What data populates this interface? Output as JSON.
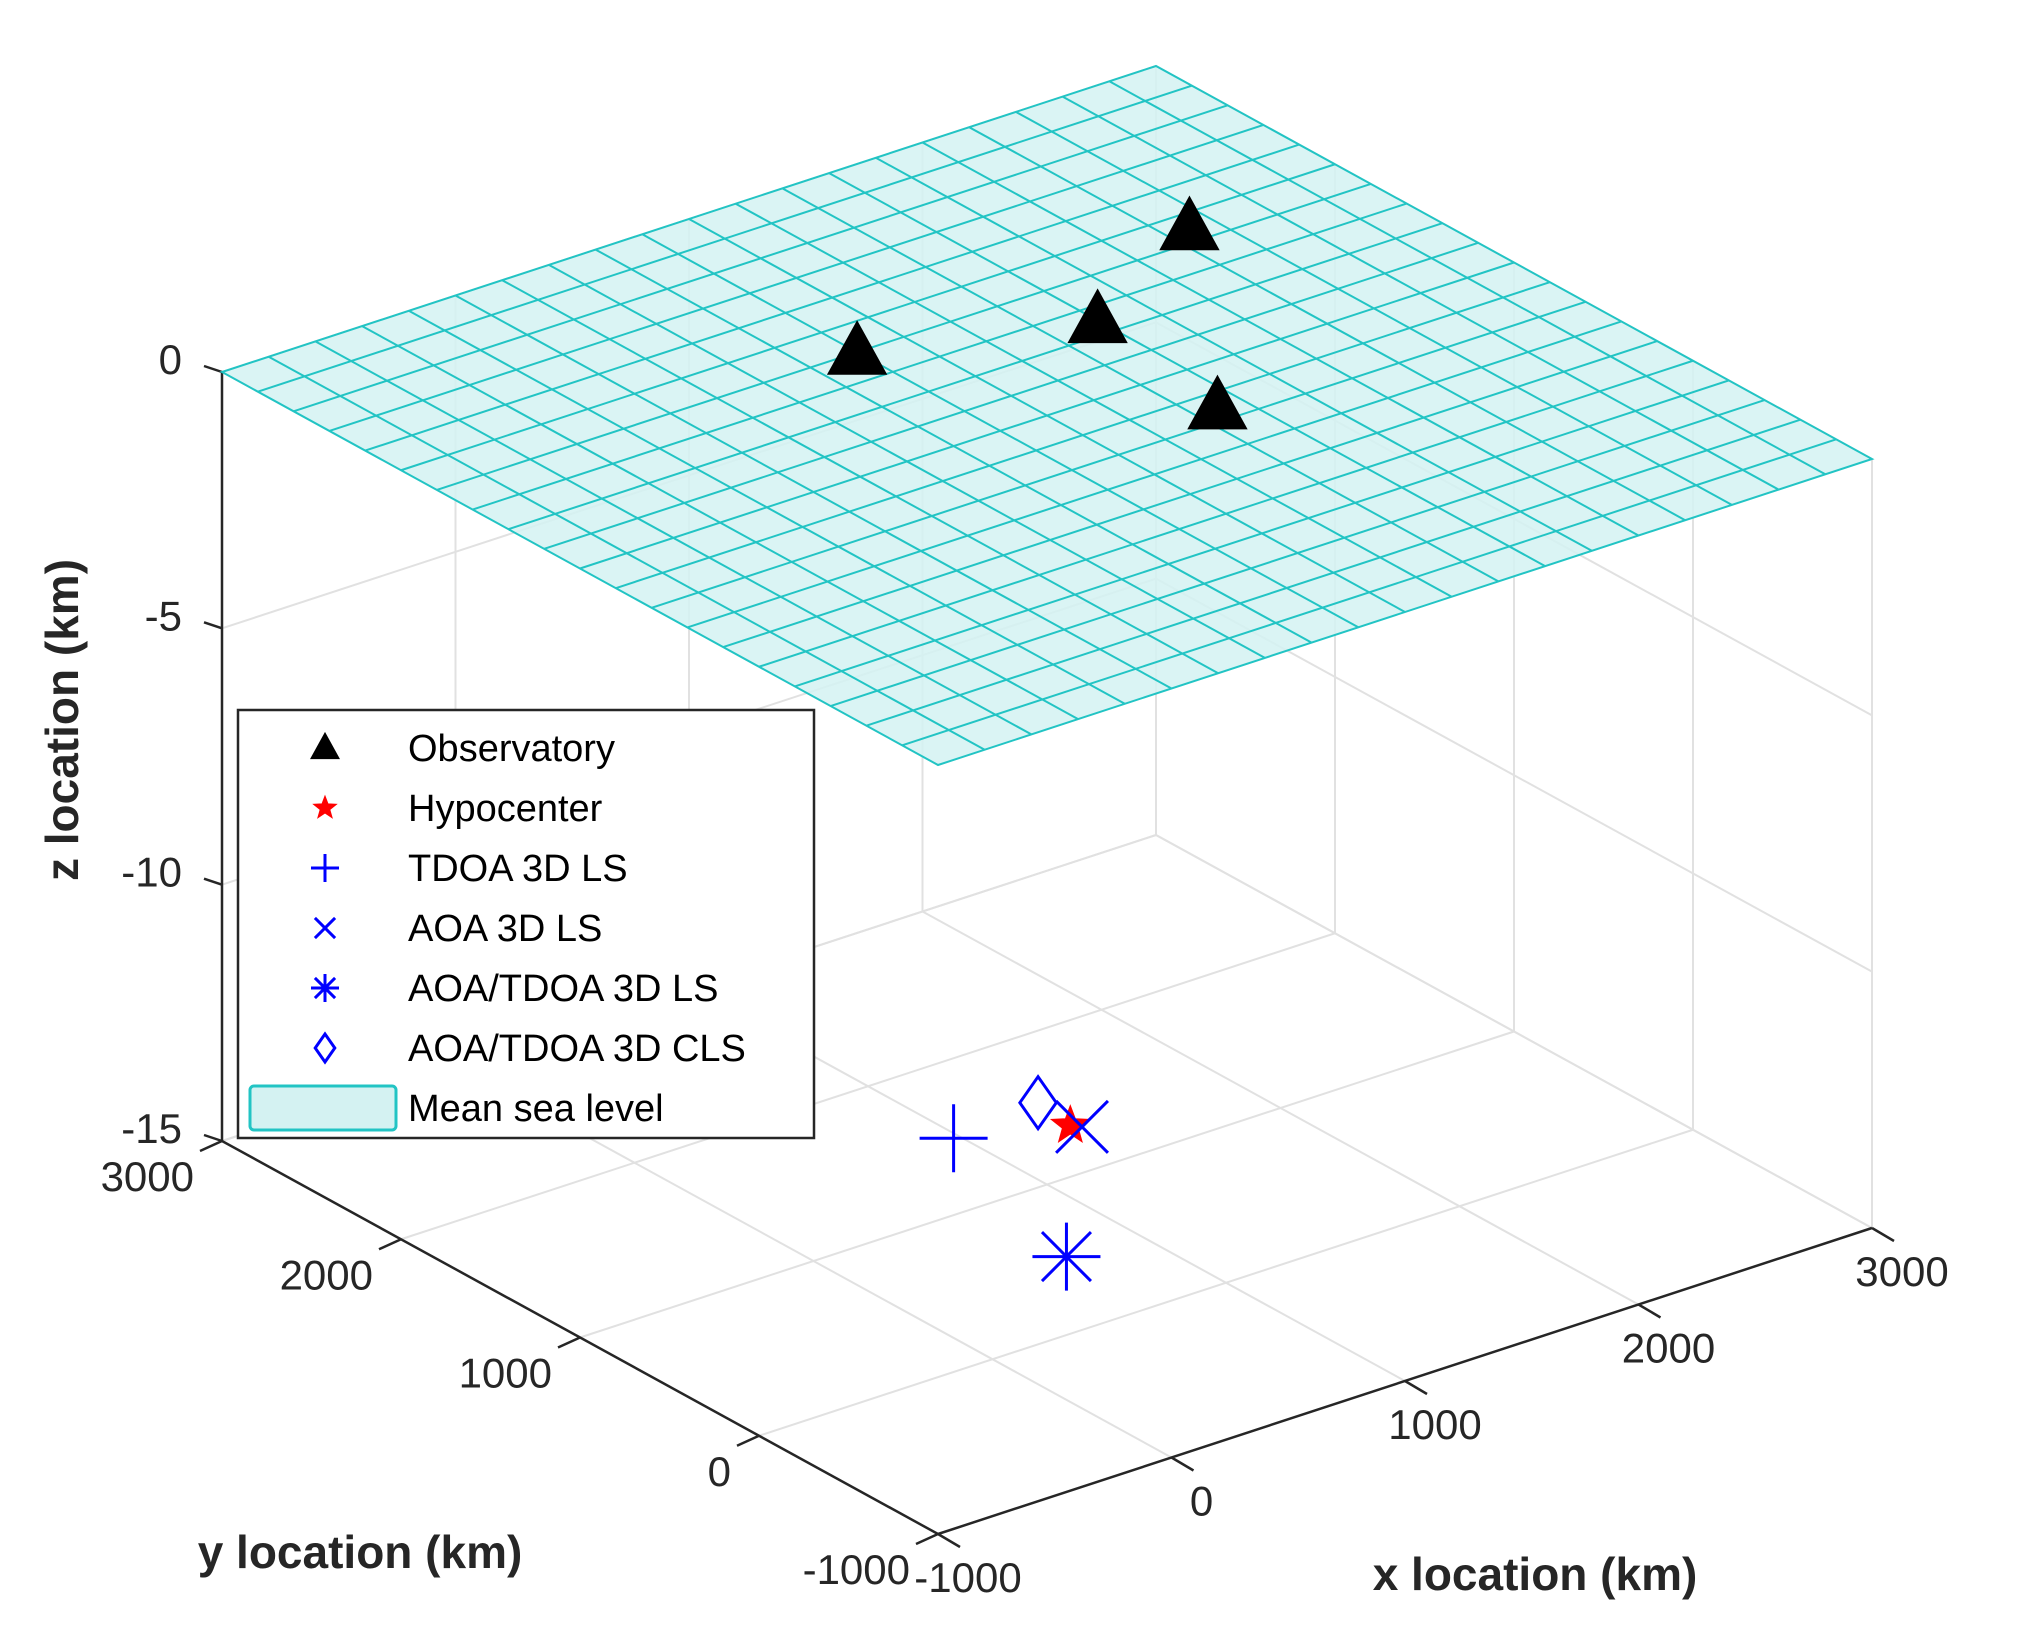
{
  "chart_data": {
    "type": "scatter3d",
    "title": "",
    "xlabel": "x location (km)",
    "ylabel": "y location (km)",
    "zlabel": "z location (km)",
    "xlim": [
      -1000,
      3000
    ],
    "ylim": [
      -1000,
      3000
    ],
    "zlim": [
      -15,
      0
    ],
    "x_ticks": [
      "-1000",
      "0",
      "1000",
      "2000",
      "3000"
    ],
    "y_ticks": [
      "-1000",
      "0",
      "1000",
      "2000",
      "3000"
    ],
    "z_ticks": [
      "0",
      "-5",
      "-10",
      "-15"
    ],
    "grid": true,
    "legend_position": "center-left",
    "surface": {
      "name": "Mean sea level",
      "z": 0,
      "color": "#22c4c4",
      "fill": "#d4f2f2",
      "grid_divisions": 20
    },
    "series": [
      {
        "name": "Observatory",
        "marker": "filled-triangle",
        "color": "#000000",
        "points": [
          [
            800,
            1800,
            0
          ],
          [
            1600,
            1500,
            0
          ],
          [
            1500,
            700,
            0
          ],
          [
            2300,
            1900,
            0
          ]
        ]
      },
      {
        "name": "Hypocenter",
        "marker": "star",
        "color": "#ff0000",
        "points": [
          [
            1100,
            1000,
            -14
          ]
        ]
      },
      {
        "name": "TDOA 3D LS",
        "marker": "plus",
        "color": "#0000ff",
        "points": [
          [
            600,
            1000,
            -13.5
          ]
        ]
      },
      {
        "name": "AOA 3D LS",
        "marker": "x",
        "color": "#0000ff",
        "points": [
          [
            1150,
            1000,
            -14.1
          ]
        ]
      },
      {
        "name": "AOA/TDOA 3D LS",
        "marker": "asterisk",
        "color": "#0000ff",
        "points": [
          [
            700,
            500,
            -15
          ]
        ]
      },
      {
        "name": "AOA/TDOA 3D CLS",
        "marker": "diamond",
        "color": "#0000ff",
        "points": [
          [
            1000,
            1050,
            -13.5
          ]
        ]
      }
    ]
  }
}
